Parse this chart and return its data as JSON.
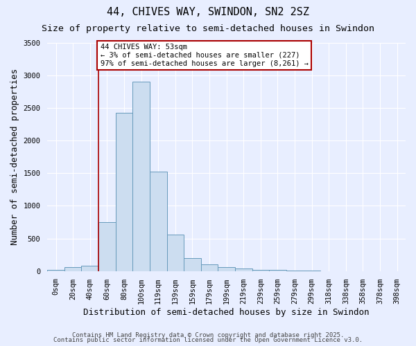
{
  "title": "44, CHIVES WAY, SWINDON, SN2 2SZ",
  "subtitle": "Size of property relative to semi-detached houses in Swindon",
  "xlabel": "Distribution of semi-detached houses by size in Swindon",
  "ylabel": "Number of semi-detached properties",
  "footnote1": "Contains HM Land Registry data © Crown copyright and database right 2025.",
  "footnote2": "Contains public sector information licensed under the Open Government Licence v3.0.",
  "annotation_title": "44 CHIVES WAY: 53sqm",
  "annotation_line1": "← 3% of semi-detached houses are smaller (227)",
  "annotation_line2": "97% of semi-detached houses are larger (8,261) →",
  "bar_labels": [
    "0sqm",
    "20sqm",
    "40sqm",
    "60sqm",
    "80sqm",
    "100sqm",
    "119sqm",
    "139sqm",
    "159sqm",
    "179sqm",
    "199sqm",
    "219sqm",
    "239sqm",
    "259sqm",
    "279sqm",
    "299sqm",
    "318sqm",
    "338sqm",
    "358sqm",
    "378sqm",
    "398sqm"
  ],
  "bar_values": [
    20,
    57,
    82,
    750,
    2420,
    2900,
    1520,
    555,
    200,
    100,
    60,
    42,
    22,
    15,
    6,
    3,
    2,
    1,
    0,
    0,
    0
  ],
  "bar_color": "#ccddf0",
  "bar_edge_color": "#6699bb",
  "bar_edge_width": 0.7,
  "red_line_index": 3,
  "red_line_color": "#aa0000",
  "annotation_box_color": "#aa0000",
  "annotation_box_fill": "#ffffff",
  "annotation_text_color": "#000000",
  "ylim": [
    0,
    3500
  ],
  "yticks": [
    0,
    500,
    1000,
    1500,
    2000,
    2500,
    3000,
    3500
  ],
  "background_color": "#e8eeff",
  "plot_bg_color": "#e8eeff",
  "grid_color": "#ffffff",
  "title_fontsize": 11,
  "subtitle_fontsize": 9.5,
  "axis_label_fontsize": 9,
  "tick_fontsize": 7.5,
  "annotation_fontsize": 7.5,
  "footnote_fontsize": 6.5
}
